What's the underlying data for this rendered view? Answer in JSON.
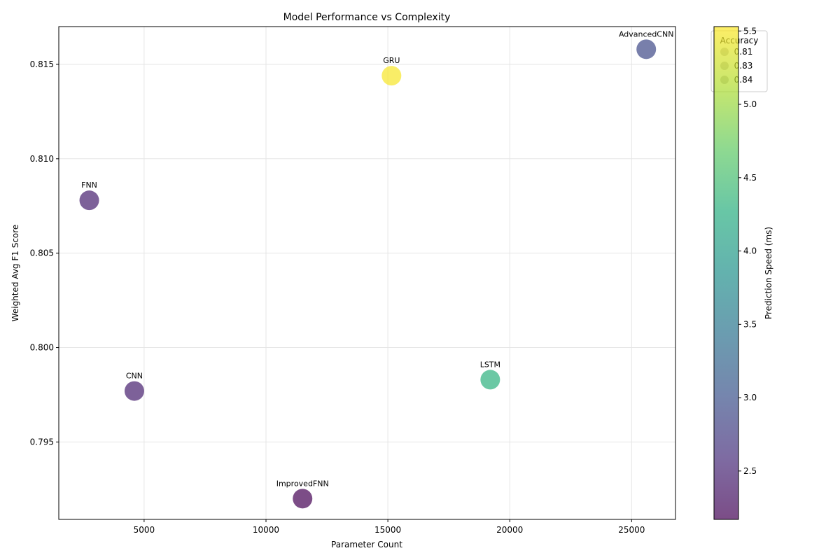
{
  "chart_data": {
    "type": "scatter",
    "title": "Model Performance vs Complexity",
    "xlabel": "Parameter Count",
    "ylabel": "Weighted Avg F1 Score",
    "xlim": [
      1500,
      26800
    ],
    "ylim": [
      0.7909,
      0.817
    ],
    "xticks": [
      5000,
      10000,
      15000,
      20000,
      25000
    ],
    "yticks": [
      0.795,
      0.8,
      0.805,
      0.81,
      0.815
    ],
    "xtick_labels": [
      "5000",
      "10000",
      "15000",
      "20000",
      "25000"
    ],
    "ytick_labels": [
      "0.795",
      "0.800",
      "0.805",
      "0.810",
      "0.815"
    ],
    "grid": true,
    "points": [
      {
        "name": "FNN",
        "x": 2750,
        "y": 0.8078,
        "speed": 2.45,
        "accuracy": 0.83
      },
      {
        "name": "CNN",
        "x": 4600,
        "y": 0.7977,
        "speed": 2.45,
        "accuracy": 0.83
      },
      {
        "name": "ImprovedFNN",
        "x": 11500,
        "y": 0.792,
        "speed": 2.17,
        "accuracy": 0.83
      },
      {
        "name": "GRU",
        "x": 15150,
        "y": 0.8144,
        "speed": 5.5,
        "accuracy": 0.83
      },
      {
        "name": "LSTM",
        "x": 19200,
        "y": 0.7983,
        "speed": 4.3,
        "accuracy": 0.83
      },
      {
        "name": "AdvancedCNN",
        "x": 25600,
        "y": 0.8158,
        "speed": 2.9,
        "accuracy": 0.84
      }
    ],
    "colorbar": {
      "label": "Prediction Speed (ms)",
      "range": [
        2.17,
        5.53
      ],
      "ticks": [
        2.5,
        3.0,
        3.5,
        4.0,
        4.5,
        5.0,
        5.5
      ],
      "tick_labels": [
        "2.5",
        "3.0",
        "3.5",
        "4.0",
        "4.5",
        "5.0",
        "5.5"
      ],
      "colormap": "viridis"
    },
    "legend": {
      "title": "Accuracy",
      "placement": "upper-right",
      "entries": [
        "0.81",
        "0.83",
        "0.84"
      ]
    },
    "marker_alpha": 0.7
  }
}
